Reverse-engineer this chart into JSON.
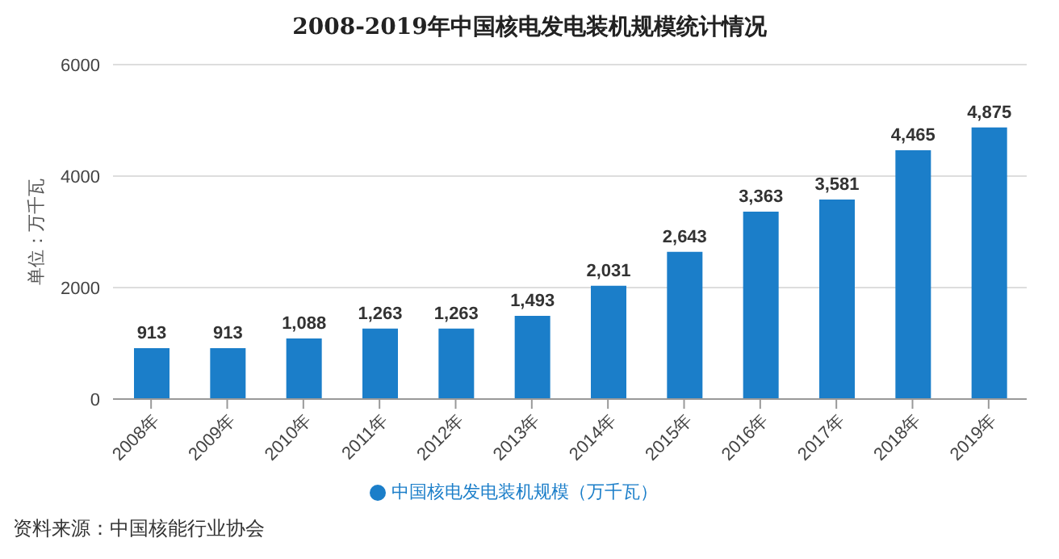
{
  "chart_data": {
    "type": "bar",
    "title": "2008-2019年中国核电发电装机规模统计情况",
    "ylabel": "单位：万千瓦",
    "categories": [
      "2008年",
      "2009年",
      "2010年",
      "2011年",
      "2012年",
      "2013年",
      "2014年",
      "2015年",
      "2016年",
      "2017年",
      "2018年",
      "2019年"
    ],
    "series": [
      {
        "name": "中国核电发电装机规模（万千瓦）",
        "color": "#1b7ec9",
        "values": [
          913,
          913,
          1088,
          1263,
          1263,
          1493,
          2031,
          2643,
          3363,
          3581,
          4465,
          4875
        ],
        "value_labels": [
          "913",
          "913",
          "1,088",
          "1,263",
          "1,263",
          "1,493",
          "2,031",
          "2,643",
          "3,363",
          "3,581",
          "4,465",
          "4,875"
        ]
      }
    ],
    "ylim": [
      0,
      6000
    ],
    "yticks": [
      0,
      2000,
      4000,
      6000
    ],
    "grid": "y",
    "legend": "bottom",
    "annotations": [
      "资料来源：中国核能行业协会"
    ]
  }
}
